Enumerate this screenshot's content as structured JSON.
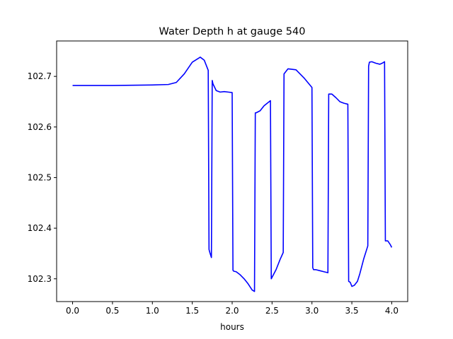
{
  "chart_data": {
    "type": "line",
    "title": "Water Depth h at gauge 540",
    "xlabel": "hours",
    "ylabel": "",
    "xlim": [
      -0.2,
      4.2
    ],
    "ylim": [
      102.255,
      102.77
    ],
    "xticks": [
      0.0,
      0.5,
      1.0,
      1.5,
      2.0,
      2.5,
      3.0,
      3.5,
      4.0
    ],
    "xtick_labels": [
      "0.0",
      "0.5",
      "1.0",
      "1.5",
      "2.0",
      "2.5",
      "3.0",
      "3.5",
      "4.0"
    ],
    "yticks": [
      102.3,
      102.4,
      102.5,
      102.6,
      102.7
    ],
    "ytick_labels": [
      "102.3",
      "102.4",
      "102.5",
      "102.6",
      "102.7"
    ],
    "grid": false,
    "series": [
      {
        "color": "#0000ff",
        "x": [
          0.0,
          0.5,
          1.0,
          1.2,
          1.3,
          1.4,
          1.5,
          1.6,
          1.65,
          1.7,
          1.71,
          1.72,
          1.74,
          1.75,
          1.76,
          1.8,
          1.85,
          1.9,
          1.95,
          2.0,
          2.01,
          2.02,
          2.05,
          2.1,
          2.15,
          2.2,
          2.25,
          2.28,
          2.29,
          2.3,
          2.35,
          2.4,
          2.48,
          2.49,
          2.5,
          2.55,
          2.6,
          2.64,
          2.65,
          2.7,
          2.8,
          2.9,
          3.0,
          3.01,
          3.02,
          3.05,
          3.1,
          3.15,
          3.2,
          3.21,
          3.25,
          3.3,
          3.35,
          3.4,
          3.45,
          3.46,
          3.48,
          3.5,
          3.53,
          3.57,
          3.6,
          3.65,
          3.7,
          3.71,
          3.72,
          3.75,
          3.8,
          3.85,
          3.88,
          3.91,
          3.92,
          3.95,
          3.98,
          4.0
        ],
        "y": [
          102.682,
          102.682,
          102.683,
          102.684,
          102.688,
          102.705,
          102.728,
          102.738,
          102.732,
          102.712,
          102.358,
          102.352,
          102.342,
          102.692,
          102.685,
          102.672,
          102.669,
          102.67,
          102.669,
          102.668,
          102.317,
          102.315,
          102.314,
          102.308,
          102.3,
          102.29,
          102.278,
          102.275,
          102.628,
          102.628,
          102.632,
          102.642,
          102.652,
          102.3,
          102.303,
          102.318,
          102.338,
          102.352,
          102.705,
          102.715,
          102.713,
          102.697,
          102.678,
          102.322,
          102.318,
          102.318,
          102.316,
          102.314,
          102.312,
          102.665,
          102.665,
          102.658,
          102.65,
          102.647,
          102.645,
          102.295,
          102.293,
          102.285,
          102.287,
          102.295,
          102.31,
          102.34,
          102.365,
          102.72,
          102.728,
          102.729,
          102.726,
          102.724,
          102.726,
          102.729,
          102.375,
          102.375,
          102.368,
          102.362
        ]
      }
    ]
  }
}
